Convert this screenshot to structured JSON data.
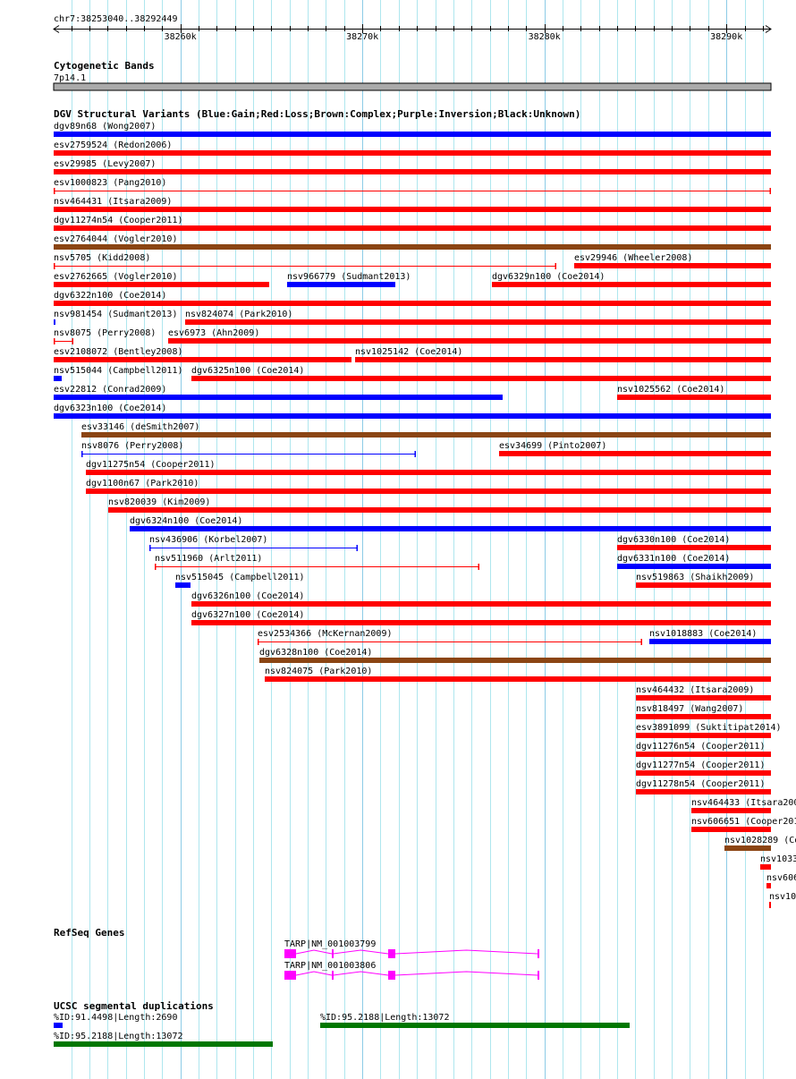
{
  "region": {
    "chrom": "chr7",
    "start": 38253040,
    "end": 38292449,
    "label": "chr7:38253040..38292449"
  },
  "ruler": {
    "major_labels": [
      {
        "pos": 38260000,
        "text": "38260k"
      },
      {
        "pos": 38270000,
        "text": "38270k"
      },
      {
        "pos": 38280000,
        "text": "38280k"
      },
      {
        "pos": 38290000,
        "text": "38290k"
      }
    ]
  },
  "colors": {
    "gain": "#0000ff",
    "loss": "#ff0000",
    "complex": "#8b4513",
    "gene": "#ff00ff",
    "segdup_low": "#0000ff",
    "segdup_high": "#007700",
    "grid": "#aee6ee",
    "grid_major": "#8ccbe6",
    "band": "#aaaaaa"
  },
  "cytoband": {
    "title": "Cytogenetic Bands",
    "band": "7p14.1"
  },
  "dgv": {
    "title": "DGV Structural Variants (Blue:Gain;Red:Loss;Brown:Complex;Purple:Inversion;Black:Unknown)",
    "rows": [
      [
        {
          "label": "dgv89n68 (Wong2007)",
          "start": 38253040,
          "end": 38292449,
          "type": "gain",
          "style": "thick"
        }
      ],
      [
        {
          "label": "esv2759524 (Redon2006)",
          "start": 38253040,
          "end": 38292449,
          "type": "loss",
          "style": "thick"
        }
      ],
      [
        {
          "label": "esv29985 (Levy2007)",
          "start": 38253040,
          "end": 38292449,
          "type": "loss",
          "style": "thick"
        }
      ],
      [
        {
          "label": "esv1000823 (Pang2010)",
          "start": 38253040,
          "end": 38292449,
          "type": "loss",
          "style": "thin"
        }
      ],
      [
        {
          "label": "nsv464431 (Itsara2009)",
          "start": 38253040,
          "end": 38292449,
          "type": "loss",
          "style": "thick"
        }
      ],
      [
        {
          "label": "dgv11274n54 (Cooper2011)",
          "start": 38253040,
          "end": 38292449,
          "type": "loss",
          "style": "thick"
        }
      ],
      [
        {
          "label": "esv2764044 (Vogler2010)",
          "start": 38253040,
          "end": 38292449,
          "type": "complex",
          "style": "thick"
        }
      ],
      [
        {
          "label": "nsv5705 (Kidd2008)",
          "start": 38253040,
          "end": 38280656,
          "type": "loss",
          "style": "thin"
        },
        {
          "label": "esv29946 (Wheeler2008)",
          "start": 38281638,
          "end": 38292449,
          "type": "loss",
          "style": "thick"
        }
      ],
      [
        {
          "label": "esv2762665 (Vogler2010)",
          "start": 38253040,
          "end": 38264882,
          "type": "loss",
          "style": "thick"
        },
        {
          "label": "nsv966779 (Sudmant2013)",
          "start": 38265865,
          "end": 38271811,
          "type": "gain",
          "style": "thick"
        },
        {
          "label": "dgv6329n100 (Coe2014)",
          "start": 38277118,
          "end": 38292449,
          "type": "loss",
          "style": "thick"
        }
      ],
      [
        {
          "label": "dgv6322n100 (Coe2014)",
          "start": 38253040,
          "end": 38292449,
          "type": "loss",
          "style": "thick"
        }
      ],
      [
        {
          "label": "nsv981454 (Sudmant2013)",
          "start": 38253040,
          "end": 38253138,
          "type": "gain",
          "style": "thick"
        },
        {
          "label": "nsv824074 (Park2010)",
          "start": 38260263,
          "end": 38292449,
          "type": "loss",
          "style": "thick"
        }
      ],
      [
        {
          "label": "nsv8075 (Perry2008)",
          "start": 38253040,
          "end": 38254121,
          "type": "loss",
          "style": "thin"
        },
        {
          "label": "esv6973 (Ahn2009)",
          "start": 38259330,
          "end": 38292449,
          "type": "loss",
          "style": "thick"
        }
      ],
      [
        {
          "label": "esv2108072 (Bentley2008)",
          "start": 38253040,
          "end": 38269403,
          "type": "loss",
          "style": "thick"
        },
        {
          "label": "nsv1025142 (Coe2014)",
          "start": 38269600,
          "end": 38292449,
          "type": "loss",
          "style": "thick"
        }
      ],
      [
        {
          "label": "nsv515044 (Campbell2011)",
          "start": 38253040,
          "end": 38253482,
          "type": "gain",
          "style": "thick"
        },
        {
          "label": "dgv6325n100 (Coe2014)",
          "start": 38260607,
          "end": 38292449,
          "type": "loss",
          "style": "thick"
        }
      ],
      [
        {
          "label": "esv22812 (Conrad2009)",
          "start": 38253040,
          "end": 38277707,
          "type": "gain",
          "style": "thick"
        },
        {
          "label": "nsv1025562 (Coe2014)",
          "start": 38283997,
          "end": 38292449,
          "type": "loss",
          "style": "thick"
        }
      ],
      [
        {
          "label": "dgv6323n100 (Coe2014)",
          "start": 38253040,
          "end": 38292449,
          "type": "gain",
          "style": "thick"
        }
      ],
      [
        {
          "label": "esv33146 (deSmith2007)",
          "start": 38254563,
          "end": 38292449,
          "type": "complex",
          "style": "thick"
        }
      ],
      [
        {
          "label": "nsv8076 (Perry2008)",
          "start": 38254563,
          "end": 38272941,
          "type": "gain",
          "style": "thin"
        },
        {
          "label": "esv34699 (Pinto2007)",
          "start": 38277511,
          "end": 38292449,
          "type": "loss",
          "style": "thick"
        }
      ],
      [
        {
          "label": "dgv11275n54 (Cooper2011)",
          "start": 38254809,
          "end": 38292449,
          "type": "loss",
          "style": "thick"
        }
      ],
      [
        {
          "label": "dgv1100n67 (Park2010)",
          "start": 38254809,
          "end": 38292449,
          "type": "loss",
          "style": "thick"
        }
      ],
      [
        {
          "label": "nsv820039 (Kim2009)",
          "start": 38256037,
          "end": 38292449,
          "type": "loss",
          "style": "thick"
        }
      ],
      [
        {
          "label": "dgv6324n100 (Coe2014)",
          "start": 38257217,
          "end": 38292449,
          "type": "gain",
          "style": "thick"
        }
      ],
      [
        {
          "label": "nsv436906 (Korbel2007)",
          "start": 38258298,
          "end": 38269747,
          "type": "gain",
          "style": "thin"
        },
        {
          "label": "dgv6330n100 (Coe2014)",
          "start": 38283997,
          "end": 38292449,
          "type": "loss",
          "style": "thick"
        }
      ],
      [
        {
          "label": "nsv511960 (Arlt2011)",
          "start": 38258593,
          "end": 38276430,
          "type": "loss",
          "style": "thin"
        },
        {
          "label": "dgv6331n100 (Coe2014)",
          "start": 38283997,
          "end": 38292449,
          "type": "gain",
          "style": "thick"
        }
      ],
      [
        {
          "label": "nsv515045 (Campbell2011)",
          "start": 38259723,
          "end": 38260558,
          "type": "gain",
          "style": "thick"
        },
        {
          "label": "nsv519863 (Shaikh2009)",
          "start": 38285029,
          "end": 38292449,
          "type": "loss",
          "style": "thick"
        }
      ],
      [
        {
          "label": "dgv6326n100 (Coe2014)",
          "start": 38260607,
          "end": 38292449,
          "type": "loss",
          "style": "thick"
        }
      ],
      [
        {
          "label": "dgv6327n100 (Coe2014)",
          "start": 38260607,
          "end": 38292449,
          "type": "loss",
          "style": "thick"
        }
      ],
      [
        {
          "label": "esv2534366 (McKernan2009)",
          "start": 38264243,
          "end": 38285373,
          "type": "loss",
          "style": "thin"
        },
        {
          "label": "nsv1018883 (Coe2014)",
          "start": 38285766,
          "end": 38292449,
          "type": "gain",
          "style": "thick"
        }
      ],
      [
        {
          "label": "dgv6328n100 (Coe2014)",
          "start": 38264342,
          "end": 38292449,
          "type": "complex",
          "style": "thick"
        }
      ],
      [
        {
          "label": "nsv824075 (Park2010)",
          "start": 38264637,
          "end": 38292449,
          "type": "loss",
          "style": "thick"
        }
      ],
      [
        {
          "label": "nsv464432 (Itsara2009)",
          "start": 38285029,
          "end": 38292449,
          "type": "loss",
          "style": "thick"
        }
      ],
      [
        {
          "label": "nsv818497 (Wang2007)",
          "start": 38285029,
          "end": 38292449,
          "type": "loss",
          "style": "thick"
        }
      ],
      [
        {
          "label": "esv3891099 (Suktitipat2014)",
          "start": 38285029,
          "end": 38292449,
          "type": "loss",
          "style": "thick"
        }
      ],
      [
        {
          "label": "dgv11276n54 (Cooper2011)",
          "start": 38285029,
          "end": 38292449,
          "type": "loss",
          "style": "thick"
        }
      ],
      [
        {
          "label": "dgv11277n54 (Cooper2011)",
          "start": 38285029,
          "end": 38292449,
          "type": "loss",
          "style": "thick"
        }
      ],
      [
        {
          "label": "dgv11278n54 (Cooper2011)",
          "start": 38285029,
          "end": 38292449,
          "type": "loss",
          "style": "thick"
        }
      ],
      [
        {
          "label": "nsv464433 (Itsara200",
          "start": 38288075,
          "end": 38292449,
          "type": "loss",
          "style": "thick"
        }
      ],
      [
        {
          "label": "nsv606651 (Cooper201",
          "start": 38288075,
          "end": 38292449,
          "type": "loss",
          "style": "thick"
        }
      ],
      [
        {
          "label": "nsv1028289 (Co",
          "start": 38289894,
          "end": 38292449,
          "type": "complex",
          "style": "thick"
        }
      ],
      [
        {
          "label": "nsv1033",
          "start": 38291859,
          "end": 38292449,
          "type": "loss",
          "style": "thick"
        }
      ],
      [
        {
          "label": "nsv606",
          "start": 38292203,
          "end": 38292449,
          "type": "loss",
          "style": "thick"
        }
      ],
      [
        {
          "label": "nsv10",
          "start": 38292350,
          "end": 38292449,
          "type": "loss",
          "style": "thin"
        }
      ]
    ]
  },
  "refseq": {
    "title": "RefSeq Genes",
    "genes": [
      {
        "label": "TARP|NM_001003799",
        "exons": [
          [
            38265718,
            38266356
          ],
          [
            38268322,
            38268400
          ],
          [
            38271418,
            38271811
          ],
          [
            38279624,
            38279722
          ]
        ]
      },
      {
        "label": "TARP|NM_001003806",
        "exons": [
          [
            38265718,
            38266356
          ],
          [
            38268322,
            38268400
          ],
          [
            38271418,
            38271811
          ],
          [
            38279624,
            38279722
          ]
        ]
      }
    ]
  },
  "segdup": {
    "title": "UCSC segmental duplications",
    "rows": [
      [
        {
          "label": "%ID:91.4498|Length:2690",
          "start": 38253040,
          "end": 38253531,
          "level": "low"
        },
        {
          "label": "%ID:95.2188|Length:13072",
          "start": 38267683,
          "end": 38284685,
          "level": "high"
        }
      ],
      [
        {
          "label": "%ID:95.2188|Length:13072",
          "start": 38253040,
          "end": 38265079,
          "level": "high"
        }
      ]
    ]
  }
}
